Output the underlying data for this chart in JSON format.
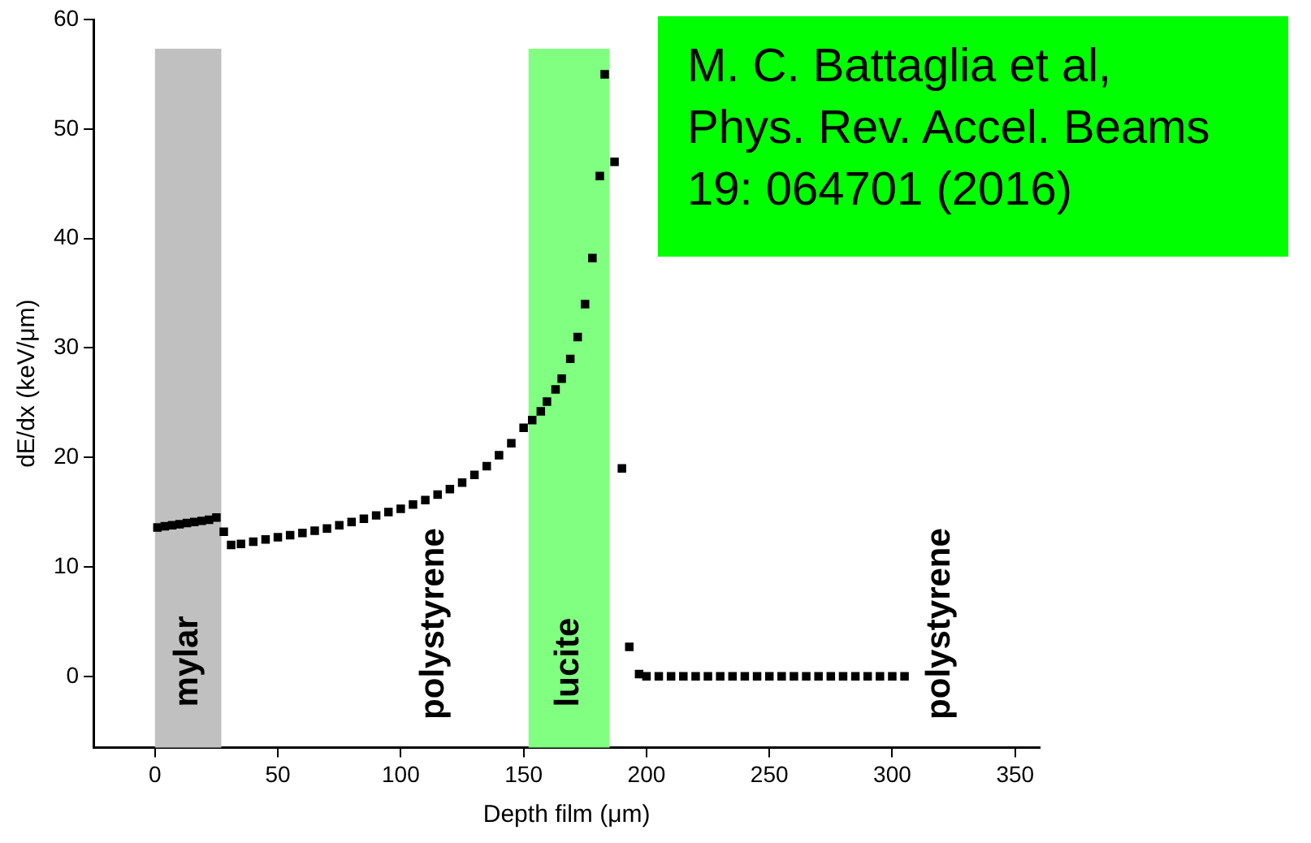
{
  "chart_data": {
    "type": "scatter",
    "xlabel": "Depth film (μm)",
    "ylabel": "dE/dx (keV/μm)",
    "xlim": [
      -25,
      360
    ],
    "ylim": [
      -6.5,
      60
    ],
    "xticks": [
      0,
      50,
      100,
      150,
      200,
      250,
      300,
      350
    ],
    "yticks": [
      0,
      10,
      20,
      30,
      40,
      50,
      60
    ],
    "grid": false,
    "legend": false,
    "marker": "square",
    "bands": [
      {
        "axis": "x",
        "from": 0,
        "to": 27,
        "label": "mylar",
        "color": "#c0c0c0"
      },
      {
        "axis": "x",
        "from": 152,
        "to": 185,
        "label": "lucite",
        "color": "#80ff80"
      }
    ],
    "annotations": [
      "polystyrene",
      "polystyrene",
      "M. C. Battaglia et al,\nPhys. Rev. Accel. Beams\n19: 064701 (2016)"
    ],
    "series": [
      {
        "color": "#000000",
        "x": [
          1,
          4,
          7,
          10,
          13,
          16,
          19,
          22,
          25,
          28,
          31,
          35,
          40,
          45,
          50,
          55,
          60,
          65,
          70,
          75,
          80,
          85,
          90,
          95,
          100,
          105,
          110,
          115,
          120,
          125,
          130,
          135,
          140,
          145,
          150,
          153.5,
          157,
          159.5,
          163,
          165.5,
          169,
          172,
          175,
          178,
          181,
          183,
          187,
          190,
          193,
          197,
          200,
          205,
          210,
          215,
          220,
          225,
          230,
          235,
          240,
          245,
          250,
          255,
          260,
          265,
          270,
          275,
          280,
          285,
          290,
          295,
          300,
          305
        ],
        "values": [
          13.6,
          13.7,
          13.8,
          13.9,
          14,
          14.1,
          14.2,
          14.3,
          14.5,
          13.2,
          12,
          12.1,
          12.3,
          12.5,
          12.7,
          12.9,
          13.1,
          13.3,
          13.5,
          13.8,
          14.1,
          14.4,
          14.7,
          15,
          15.3,
          15.7,
          16.1,
          16.6,
          17.1,
          17.7,
          18.4,
          19.2,
          20.2,
          21.3,
          22.7,
          23.4,
          24.2,
          25.1,
          26.2,
          27.2,
          29,
          31,
          34,
          38.2,
          45.7,
          55,
          47,
          19,
          2.7,
          0.2,
          0,
          0,
          0,
          0,
          0,
          0,
          0,
          0,
          0,
          0,
          0,
          0,
          0,
          0,
          0,
          0,
          0,
          0,
          0,
          0,
          0,
          0
        ]
      }
    ]
  }
}
